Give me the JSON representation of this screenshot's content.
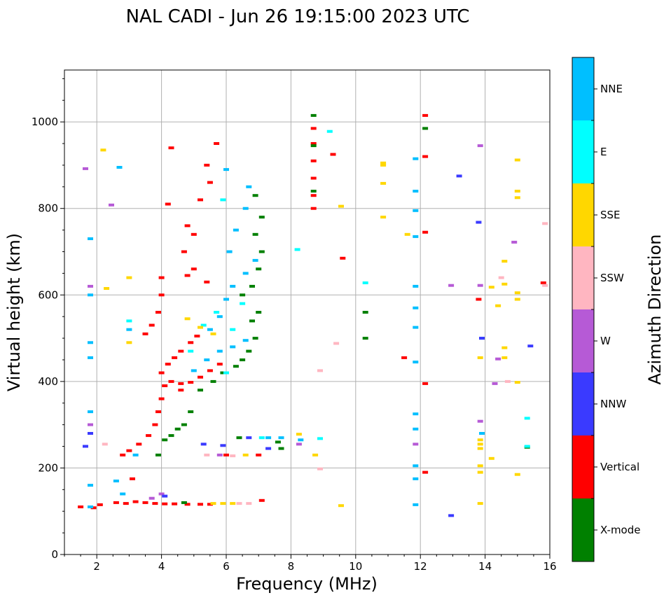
{
  "chart_data": {
    "type": "scatter",
    "title": "NAL CADI - Jun 26 19:15:00 2023 UTC",
    "xlabel": "Frequency (MHz)",
    "ylabel": "Virtual height (km)",
    "xlim": [
      1,
      16
    ],
    "ylim": [
      0,
      1120
    ],
    "xticks": [
      "2",
      "4",
      "6",
      "8",
      "10",
      "12",
      "14",
      "16"
    ],
    "yticks": [
      "0",
      "200",
      "400",
      "600",
      "800",
      "1000"
    ],
    "grid": true,
    "colorbar": {
      "label": "Azimuth Direction",
      "categories": [
        {
          "name": "X-mode",
          "color": "#008000"
        },
        {
          "name": "Vertical",
          "color": "#ff0000"
        },
        {
          "name": "NNW",
          "color": "#3a3aff"
        },
        {
          "name": "W",
          "color": "#b65ad6"
        },
        {
          "name": "SSW",
          "color": "#ffb6c1"
        },
        {
          "name": "SSE",
          "color": "#ffd700"
        },
        {
          "name": "E",
          "color": "#00ffff"
        },
        {
          "name": "NNE",
          "color": "#00bfff"
        }
      ]
    },
    "series": [
      {
        "name": "Vertical",
        "points": [
          [
            1.5,
            110
          ],
          [
            1.9,
            108
          ],
          [
            2.1,
            115
          ],
          [
            2.6,
            120
          ],
          [
            2.9,
            118
          ],
          [
            3.2,
            122
          ],
          [
            3.5,
            120
          ],
          [
            3.8,
            118
          ],
          [
            4.1,
            117
          ],
          [
            4.4,
            117
          ],
          [
            4.8,
            116
          ],
          [
            5.2,
            116
          ],
          [
            5.5,
            116
          ],
          [
            2.8,
            230
          ],
          [
            3.0,
            240
          ],
          [
            3.3,
            255
          ],
          [
            3.6,
            275
          ],
          [
            3.8,
            300
          ],
          [
            3.9,
            330
          ],
          [
            4.0,
            360
          ],
          [
            4.1,
            390
          ],
          [
            4.3,
            400
          ],
          [
            4.6,
            395
          ],
          [
            4.9,
            398
          ],
          [
            5.2,
            410
          ],
          [
            5.5,
            425
          ],
          [
            5.8,
            440
          ],
          [
            4.0,
            420
          ],
          [
            4.2,
            440
          ],
          [
            4.4,
            455
          ],
          [
            4.6,
            470
          ],
          [
            4.9,
            490
          ],
          [
            5.1,
            505
          ],
          [
            3.5,
            510
          ],
          [
            3.7,
            530
          ],
          [
            3.9,
            560
          ],
          [
            4.0,
            600
          ],
          [
            4.0,
            640
          ],
          [
            4.8,
            645
          ],
          [
            5.0,
            660
          ],
          [
            5.4,
            630
          ],
          [
            4.7,
            700
          ],
          [
            4.8,
            760
          ],
          [
            5.2,
            820
          ],
          [
            5.5,
            860
          ],
          [
            5.4,
            900
          ],
          [
            5.7,
            950
          ],
          [
            4.3,
            940
          ],
          [
            4.2,
            810
          ],
          [
            5.0,
            740
          ],
          [
            6.0,
            230
          ],
          [
            7.0,
            230
          ],
          [
            7.1,
            125
          ],
          [
            8.7,
            800
          ],
          [
            8.7,
            830
          ],
          [
            8.7,
            870
          ],
          [
            8.7,
            910
          ],
          [
            8.7,
            950
          ],
          [
            8.7,
            985
          ],
          [
            9.3,
            925
          ],
          [
            12.15,
            1015
          ],
          [
            12.15,
            920
          ],
          [
            12.15,
            745
          ],
          [
            12.15,
            190
          ],
          [
            12.15,
            395
          ],
          [
            11.5,
            455
          ],
          [
            13.8,
            590
          ],
          [
            15.8,
            628
          ],
          [
            9.6,
            685
          ],
          [
            4.6,
            380
          ],
          [
            3.1,
            175
          ]
        ]
      },
      {
        "name": "X-mode",
        "points": [
          [
            6.3,
            435
          ],
          [
            6.5,
            450
          ],
          [
            6.7,
            470
          ],
          [
            6.9,
            500
          ],
          [
            6.8,
            540
          ],
          [
            7.0,
            560
          ],
          [
            6.5,
            600
          ],
          [
            6.8,
            620
          ],
          [
            7.0,
            660
          ],
          [
            7.1,
            700
          ],
          [
            6.9,
            740
          ],
          [
            7.1,
            780
          ],
          [
            6.9,
            830
          ],
          [
            5.9,
            420
          ],
          [
            5.6,
            400
          ],
          [
            5.2,
            380
          ],
          [
            4.9,
            330
          ],
          [
            4.7,
            300
          ],
          [
            4.5,
            290
          ],
          [
            4.3,
            275
          ],
          [
            4.1,
            265
          ],
          [
            6.4,
            270
          ],
          [
            7.6,
            260
          ],
          [
            7.7,
            245
          ],
          [
            8.7,
            1015
          ],
          [
            8.7,
            840
          ],
          [
            8.7,
            945
          ],
          [
            10.3,
            500
          ],
          [
            10.3,
            560
          ],
          [
            12.15,
            985
          ],
          [
            15.3,
            248
          ],
          [
            4.7,
            120
          ],
          [
            3.9,
            230
          ]
        ]
      },
      {
        "name": "NNE",
        "points": [
          [
            1.8,
            110
          ],
          [
            1.8,
            160
          ],
          [
            1.8,
            330
          ],
          [
            1.8,
            455
          ],
          [
            1.8,
            490
          ],
          [
            1.8,
            600
          ],
          [
            1.8,
            730
          ],
          [
            2.6,
            170
          ],
          [
            2.8,
            140
          ],
          [
            3.0,
            520
          ],
          [
            3.2,
            230
          ],
          [
            5.0,
            425
          ],
          [
            5.4,
            450
          ],
          [
            5.8,
            470
          ],
          [
            6.2,
            480
          ],
          [
            6.6,
            495
          ],
          [
            5.5,
            520
          ],
          [
            5.8,
            550
          ],
          [
            6.0,
            590
          ],
          [
            6.2,
            620
          ],
          [
            6.6,
            650
          ],
          [
            6.9,
            680
          ],
          [
            6.1,
            700
          ],
          [
            6.3,
            750
          ],
          [
            6.6,
            800
          ],
          [
            6.7,
            850
          ],
          [
            6.0,
            890
          ],
          [
            7.3,
            270
          ],
          [
            7.7,
            270
          ],
          [
            8.3,
            265
          ],
          [
            11.85,
            175
          ],
          [
            11.85,
            205
          ],
          [
            11.85,
            290
          ],
          [
            11.85,
            325
          ],
          [
            11.85,
            445
          ],
          [
            11.85,
            525
          ],
          [
            11.85,
            570
          ],
          [
            11.85,
            620
          ],
          [
            11.85,
            735
          ],
          [
            11.85,
            795
          ],
          [
            11.85,
            840
          ],
          [
            11.85,
            915
          ],
          [
            11.85,
            115
          ],
          [
            13.9,
            500
          ],
          [
            13.9,
            280
          ],
          [
            2.7,
            895
          ]
        ]
      },
      {
        "name": "E",
        "points": [
          [
            3.0,
            540
          ],
          [
            4.9,
            470
          ],
          [
            5.3,
            530
          ],
          [
            5.7,
            560
          ],
          [
            6.2,
            520
          ],
          [
            6.5,
            580
          ],
          [
            7.1,
            270
          ],
          [
            8.9,
            268
          ],
          [
            10.3,
            628
          ],
          [
            15.3,
            315
          ],
          [
            15.3,
            250
          ],
          [
            5.9,
            820
          ],
          [
            6.0,
            420
          ],
          [
            8.2,
            705
          ],
          [
            9.2,
            978
          ]
        ]
      },
      {
        "name": "SSE",
        "points": [
          [
            3.0,
            640
          ],
          [
            3.0,
            490
          ],
          [
            2.3,
            615
          ],
          [
            2.2,
            935
          ],
          [
            4.8,
            545
          ],
          [
            5.2,
            525
          ],
          [
            5.6,
            510
          ],
          [
            6.2,
            118
          ],
          [
            5.9,
            118
          ],
          [
            5.6,
            118
          ],
          [
            6.6,
            230
          ],
          [
            8.25,
            278
          ],
          [
            8.75,
            230
          ],
          [
            9.55,
            113
          ],
          [
            10.85,
            780
          ],
          [
            10.85,
            858
          ],
          [
            10.85,
            905
          ],
          [
            10.85,
            900
          ],
          [
            13.85,
            118
          ],
          [
            13.85,
            190
          ],
          [
            13.85,
            205
          ],
          [
            13.85,
            245
          ],
          [
            13.85,
            255
          ],
          [
            13.85,
            265
          ],
          [
            13.85,
            455
          ],
          [
            14.2,
            222
          ],
          [
            14.2,
            618
          ],
          [
            14.4,
            575
          ],
          [
            14.6,
            678
          ],
          [
            14.6,
            625
          ],
          [
            14.6,
            478
          ],
          [
            14.6,
            455
          ],
          [
            15.0,
            825
          ],
          [
            15.0,
            840
          ],
          [
            15.0,
            912
          ],
          [
            15.0,
            605
          ],
          [
            15.0,
            590
          ],
          [
            15.0,
            398
          ],
          [
            15.0,
            185
          ],
          [
            11.6,
            740
          ],
          [
            9.55,
            805
          ]
        ]
      },
      {
        "name": "SSW",
        "points": [
          [
            6.4,
            118
          ],
          [
            6.7,
            118
          ],
          [
            5.4,
            230
          ],
          [
            6.2,
            228
          ],
          [
            2.25,
            255
          ],
          [
            8.9,
            198
          ],
          [
            8.9,
            425
          ],
          [
            9.4,
            488
          ],
          [
            14.5,
            640
          ],
          [
            15.85,
            765
          ],
          [
            15.85,
            622
          ],
          [
            14.7,
            400
          ]
        ]
      },
      {
        "name": "W",
        "points": [
          [
            1.8,
            300
          ],
          [
            1.8,
            620
          ],
          [
            4.0,
            140
          ],
          [
            3.7,
            130
          ],
          [
            8.25,
            255
          ],
          [
            11.85,
            255
          ],
          [
            13.85,
            308
          ],
          [
            13.85,
            622
          ],
          [
            12.95,
            622
          ],
          [
            13.85,
            945
          ],
          [
            14.9,
            722
          ],
          [
            14.4,
            452
          ],
          [
            14.3,
            395
          ],
          [
            1.65,
            892
          ],
          [
            2.45,
            808
          ],
          [
            5.8,
            230
          ]
        ]
      },
      {
        "name": "NNW",
        "points": [
          [
            1.8,
            280
          ],
          [
            1.65,
            250
          ],
          [
            5.3,
            255
          ],
          [
            5.9,
            252
          ],
          [
            6.7,
            270
          ],
          [
            7.3,
            245
          ],
          [
            12.95,
            90
          ],
          [
            13.2,
            875
          ],
          [
            15.4,
            482
          ],
          [
            13.8,
            768
          ],
          [
            13.9,
            500
          ],
          [
            4.1,
            135
          ]
        ]
      }
    ]
  }
}
